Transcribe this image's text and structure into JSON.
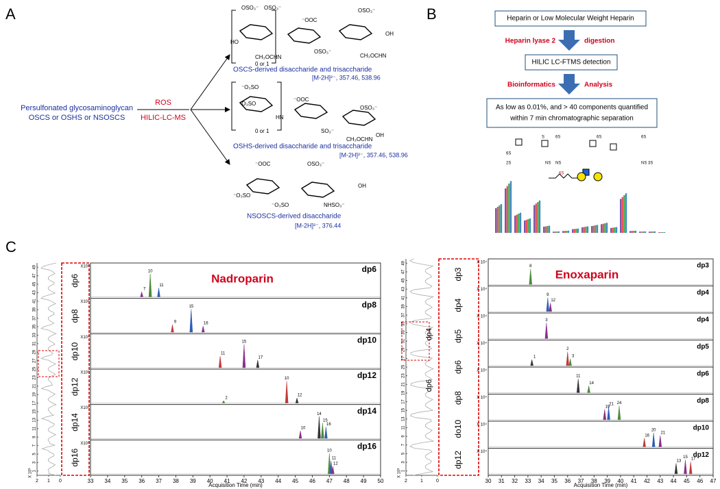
{
  "panel_a": {
    "label": "A",
    "starting_material": [
      "Persulfonated glycosaminoglycan",
      "OSCS or OSHS or NSOSCS"
    ],
    "reagent_top": "ROS",
    "reagent_bottom": "HILIC-LC-MS",
    "products": [
      {
        "name": "OSCS-derived disaccharide and trisaccharide",
        "mass": "[M-2H]²⁻, 357.46, 538.96",
        "atoms": [
          "OSO₃⁻",
          "OSO₃⁻",
          "HO",
          "CH₃OCHN",
          "0 or 1",
          "⁻OOC",
          "OSO₃⁻",
          "OSO₃⁻",
          "OH",
          "CH₃OCHN"
        ]
      },
      {
        "name": "OSHS-derived disaccharide and trisaccharide",
        "mass": "[M-2H]²⁻, 357.46, 538.96",
        "atoms": [
          "⁻O₃SO",
          "⁻O₃SO",
          "HN",
          "0 or 1",
          "⁻OOC",
          "SO₃⁻",
          "OSO₃⁻",
          "CH₃OCHN",
          "OH"
        ]
      },
      {
        "name": "NSOSCS-derived disaccharide",
        "mass": "[M-2H]²⁻, 376.44",
        "atoms": [
          "⁻OOC",
          "OSO₃⁻",
          "⁻O₃SO",
          "⁻O₃SO",
          "NHSO₃⁻",
          "OH"
        ]
      }
    ]
  },
  "panel_b": {
    "label": "B",
    "box1": "Heparin or Low Molecular Weight Heparin",
    "step1_left": "Heparin lyase 2",
    "step1_right": "digestion",
    "box2": "HILIC LC-FTMS detection",
    "step2_left": "Bioinformatics",
    "step2_right": "Analysis",
    "box3": [
      "As low as 0.01%, and  > 40 components quantified",
      "within 7 min chromatographic separation"
    ],
    "icon_labels": [
      "6S",
      "2S",
      "NS",
      "S",
      "6S",
      "NS",
      "6S",
      "6S",
      "NS 3S",
      "6S"
    ]
  },
  "panel_c": {
    "label": "C",
    "charts": [
      {
        "title": "Nadroparin",
        "scale": "X10³",
        "xlabel": "Acquisition Time (min)",
        "xlim": [
          33,
          50
        ],
        "xticks": [
          33,
          34,
          35,
          36,
          37,
          38,
          39,
          40,
          41,
          42,
          43,
          44,
          45,
          46,
          47,
          48,
          49,
          50
        ],
        "strip_ticks": [
          1,
          3,
          5,
          7,
          9,
          11,
          13,
          15,
          17,
          19,
          21,
          23,
          25,
          27,
          29,
          31,
          33,
          35,
          37,
          39,
          41,
          43,
          45,
          47,
          49
        ],
        "strip_scale": "X 10³",
        "strip_xticks": [
          2,
          1,
          0
        ],
        "box_labels": [
          "dp6",
          "dp8",
          "dp10",
          "dp12",
          "dp14",
          "dp16"
        ],
        "strip_labels": [],
        "rows": [
          {
            "name": "dp6",
            "peaks": [
              {
                "label": "10",
                "time": 36.5,
                "height": 0.9
              },
              {
                "label": "11",
                "time": 37.0,
                "height": 0.35
              },
              {
                "label": "7",
                "time": 36.0,
                "height": 0.2
              }
            ]
          },
          {
            "name": "dp8",
            "peaks": [
              {
                "label": "15",
                "time": 38.9,
                "height": 0.9
              },
              {
                "label": "16",
                "time": 39.6,
                "height": 0.25
              },
              {
                "label": "9",
                "time": 37.8,
                "height": 0.3
              }
            ]
          },
          {
            "name": "dp10",
            "peaks": [
              {
                "label": "15",
                "time": 42.0,
                "height": 0.9
              },
              {
                "label": "11",
                "time": 40.6,
                "height": 0.45
              },
              {
                "label": "17",
                "time": 42.8,
                "height": 0.3
              }
            ]
          },
          {
            "name": "dp12",
            "peaks": [
              {
                "label": "10",
                "time": 44.5,
                "height": 0.85
              },
              {
                "label": "12",
                "time": 45.1,
                "height": 0.2
              },
              {
                "label": "2",
                "time": 40.8,
                "height": 0.1
              }
            ]
          },
          {
            "name": "dp14",
            "peaks": [
              {
                "label": "14",
                "time": 46.4,
                "height": 0.85
              },
              {
                "label": "15",
                "time": 46.6,
                "height": 0.6
              },
              {
                "label": "16",
                "time": 46.8,
                "height": 0.45
              },
              {
                "label": "10",
                "time": 45.3,
                "height": 0.3
              }
            ]
          },
          {
            "name": "dp16",
            "peaks": [
              {
                "label": "10",
                "time": 47.0,
                "height": 0.8
              },
              {
                "label": "11",
                "time": 47.1,
                "height": 0.5
              },
              {
                "label": "12",
                "time": 47.2,
                "height": 0.3
              }
            ]
          }
        ]
      },
      {
        "title": "Enoxaparin",
        "scale": "X 10⁴",
        "xlabel": "Acquisition Time (min)",
        "xlim": [
          30,
          47
        ],
        "xticks": [
          30,
          31,
          32,
          33,
          34,
          35,
          36,
          37,
          38,
          39,
          40,
          41,
          42,
          43,
          44,
          45,
          46,
          47
        ],
        "strip_ticks": [
          1,
          3,
          5,
          7,
          9,
          11,
          13,
          15,
          17,
          19,
          21,
          23,
          25,
          27,
          29,
          31,
          33,
          35,
          37,
          39,
          41,
          43,
          45,
          47,
          49
        ],
        "strip_scale": "X 10³",
        "strip_xticks": [
          2,
          1,
          0
        ],
        "box_labels": [
          "dp3",
          "dp4",
          "dp5",
          "dp6",
          "dp8",
          "do10",
          "dp12"
        ],
        "strip_labels": [
          "dp4",
          "dp6"
        ],
        "rows": [
          {
            "name": "dp3",
            "peaks": [
              {
                "label": "8",
                "time": 33.2,
                "height": 0.9
              }
            ]
          },
          {
            "name": "dp4",
            "peaks": [
              {
                "label": "9",
                "time": 34.5,
                "height": 0.8
              },
              {
                "label": "12",
                "time": 34.7,
                "height": 0.5
              }
            ]
          },
          {
            "name": "dp4",
            "peaks": [
              {
                "label": "3",
                "time": 34.4,
                "height": 0.9
              }
            ]
          },
          {
            "name": "dp5",
            "peaks": [
              {
                "label": "2",
                "time": 36.0,
                "height": 0.8
              },
              {
                "label": "1",
                "time": 33.3,
                "height": 0.35
              },
              {
                "label": "3",
                "time": 36.2,
                "height": 0.4
              }
            ]
          },
          {
            "name": "dp6",
            "peaks": [
              {
                "label": "11",
                "time": 36.8,
                "height": 0.8
              },
              {
                "label": "14",
                "time": 37.6,
                "height": 0.4
              }
            ]
          },
          {
            "name": "dp8",
            "peaks": [
              {
                "label": "24",
                "time": 39.9,
                "height": 0.8
              },
              {
                "label": "21",
                "time": 39.1,
                "height": 0.75
              },
              {
                "label": "19",
                "time": 38.8,
                "height": 0.6
              }
            ]
          },
          {
            "name": "dp10",
            "peaks": [
              {
                "label": "20",
                "time": 42.5,
                "height": 0.8
              },
              {
                "label": "21",
                "time": 43.0,
                "height": 0.65
              },
              {
                "label": "16",
                "time": 41.8,
                "height": 0.5
              }
            ]
          },
          {
            "name": "dp12",
            "peaks": [
              {
                "label": "15",
                "time": 44.9,
                "height": 0.8
              },
              {
                "label": "17",
                "time": 45.3,
                "height": 0.7
              },
              {
                "label": "13",
                "time": 44.2,
                "height": 0.6
              }
            ]
          }
        ]
      }
    ]
  }
}
